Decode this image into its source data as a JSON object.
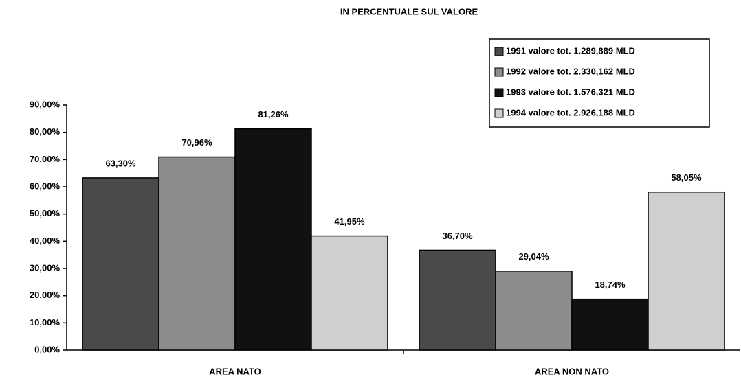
{
  "chart_data": {
    "type": "bar",
    "title": "IN PERCENTUALE SUL VALORE",
    "categories": [
      "AREA NATO",
      "AREA NON NATO"
    ],
    "series": [
      {
        "name": "1991 valore tot. 1.289,889 MLD",
        "color": "#4a4a4a",
        "values": [
          63.3,
          36.7
        ],
        "value_labels": [
          "63,30%",
          "36,70%"
        ]
      },
      {
        "name": "1992 valore tot. 2.330,162 MLD",
        "color": "#8c8c8c",
        "values": [
          70.96,
          29.04
        ],
        "value_labels": [
          "70,96%",
          "29,04%"
        ]
      },
      {
        "name": "1993 valore tot. 1.576,321 MLD",
        "color": "#111111",
        "values": [
          81.26,
          18.74
        ],
        "value_labels": [
          "81,26%",
          "18,74%"
        ]
      },
      {
        "name": "1994 valore tot. 2.926,188 MLD",
        "color": "#cfcfcf",
        "values": [
          41.95,
          58.05
        ],
        "value_labels": [
          "41,95%",
          "58,05%"
        ]
      }
    ],
    "ylim": [
      0,
      90
    ],
    "yticks": [
      {
        "value": 0,
        "label": "0,00%"
      },
      {
        "value": 10,
        "label": "10,00%"
      },
      {
        "value": 20,
        "label": "20,00%"
      },
      {
        "value": 30,
        "label": "30,00%"
      },
      {
        "value": 40,
        "label": "40,00%"
      },
      {
        "value": 50,
        "label": "50,00%"
      },
      {
        "value": 60,
        "label": "60,00%"
      },
      {
        "value": 70,
        "label": "70,00%"
      },
      {
        "value": 80,
        "label": "80,00%"
      },
      {
        "value": 90,
        "label": "90,00%"
      }
    ],
    "legend": "top-right"
  }
}
